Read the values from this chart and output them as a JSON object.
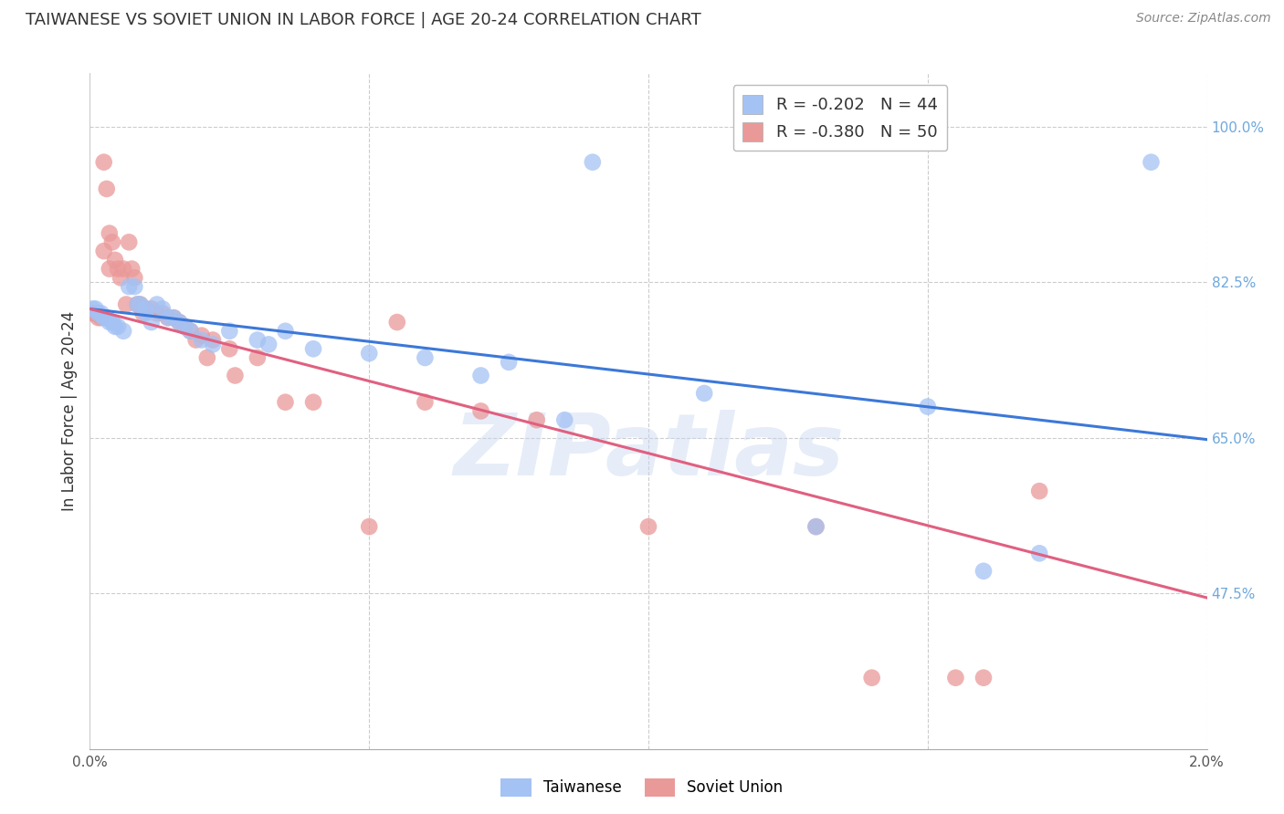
{
  "title": "TAIWANESE VS SOVIET UNION IN LABOR FORCE | AGE 20-24 CORRELATION CHART",
  "source": "Source: ZipAtlas.com",
  "ylabel": "In Labor Force | Age 20-24",
  "watermark": "ZIPatlas",
  "xlim": [
    0.0,
    0.02
  ],
  "ylim": [
    0.3,
    1.06
  ],
  "yticks": [
    0.475,
    0.65,
    0.825,
    1.0
  ],
  "ytick_labels": [
    "47.5%",
    "65.0%",
    "82.5%",
    "100.0%"
  ],
  "xticks": [
    0.0,
    0.005,
    0.01,
    0.015,
    0.02
  ],
  "xtick_labels": [
    "0.0%",
    "",
    "",
    "",
    "2.0%"
  ],
  "legend_r_blue": "R = -0.202",
  "legend_n_blue": "N = 44",
  "legend_r_pink": "R = -0.380",
  "legend_n_pink": "N = 50",
  "blue_color": "#a4c2f4",
  "pink_color": "#ea9999",
  "trend_blue": "#3c78d8",
  "trend_pink": "#e06080",
  "right_axis_color": "#6fa8dc",
  "background_color": "#ffffff",
  "grid_color": "#cccccc",
  "title_fontsize": 13,
  "axis_label_fontsize": 12,
  "tick_fontsize": 11,
  "blue_scatter_x": [
    5e-05,
    0.0001,
    0.00015,
    0.0002,
    0.00025,
    0.0003,
    0.00035,
    0.0004,
    0.00045,
    0.0005,
    0.0006,
    0.0007,
    0.0008,
    0.00085,
    0.0009,
    0.001,
    0.001,
    0.0011,
    0.0012,
    0.0013,
    0.0014,
    0.0015,
    0.0016,
    0.0017,
    0.0018,
    0.002,
    0.0022,
    0.0025,
    0.003,
    0.0032,
    0.004,
    0.005,
    0.006,
    0.0075,
    0.009,
    0.011,
    0.013,
    0.015,
    0.017,
    0.019,
    0.0035,
    0.007,
    0.0085,
    0.016
  ],
  "blue_scatter_y": [
    0.795,
    0.795,
    0.79,
    0.79,
    0.785,
    0.785,
    0.78,
    0.78,
    0.775,
    0.775,
    0.77,
    0.82,
    0.82,
    0.8,
    0.8,
    0.79,
    0.795,
    0.78,
    0.8,
    0.795,
    0.785,
    0.785,
    0.78,
    0.775,
    0.77,
    0.76,
    0.755,
    0.77,
    0.76,
    0.755,
    0.75,
    0.745,
    0.74,
    0.735,
    0.96,
    0.7,
    0.55,
    0.685,
    0.52,
    0.96,
    0.77,
    0.72,
    0.67,
    0.5
  ],
  "pink_scatter_x": [
    5e-05,
    0.0001,
    0.00015,
    0.0002,
    0.00025,
    0.0003,
    0.00035,
    0.0004,
    0.00045,
    0.0005,
    0.0006,
    0.0007,
    0.00075,
    0.0008,
    0.00085,
    0.0009,
    0.001,
    0.0011,
    0.0012,
    0.0013,
    0.0014,
    0.0015,
    0.0016,
    0.0017,
    0.0018,
    0.002,
    0.0022,
    0.0025,
    0.003,
    0.0035,
    0.004,
    0.005,
    0.0055,
    0.006,
    0.007,
    0.008,
    0.01,
    0.013,
    0.014,
    0.0155,
    0.016,
    0.017,
    0.00025,
    0.00035,
    0.00055,
    0.00065,
    0.00095,
    0.0019,
    0.0021,
    0.0026
  ],
  "pink_scatter_y": [
    0.79,
    0.79,
    0.785,
    0.785,
    0.96,
    0.93,
    0.88,
    0.87,
    0.85,
    0.84,
    0.84,
    0.87,
    0.84,
    0.83,
    0.8,
    0.8,
    0.795,
    0.795,
    0.79,
    0.79,
    0.785,
    0.785,
    0.78,
    0.775,
    0.77,
    0.765,
    0.76,
    0.75,
    0.74,
    0.69,
    0.69,
    0.55,
    0.78,
    0.69,
    0.68,
    0.67,
    0.55,
    0.55,
    0.38,
    0.38,
    0.38,
    0.59,
    0.86,
    0.84,
    0.83,
    0.8,
    0.79,
    0.76,
    0.74,
    0.72
  ],
  "blue_trend_x": [
    0.0,
    0.02
  ],
  "blue_trend_y": [
    0.795,
    0.648
  ],
  "pink_trend_x": [
    0.0,
    0.02
  ],
  "pink_trend_y": [
    0.795,
    0.47
  ]
}
